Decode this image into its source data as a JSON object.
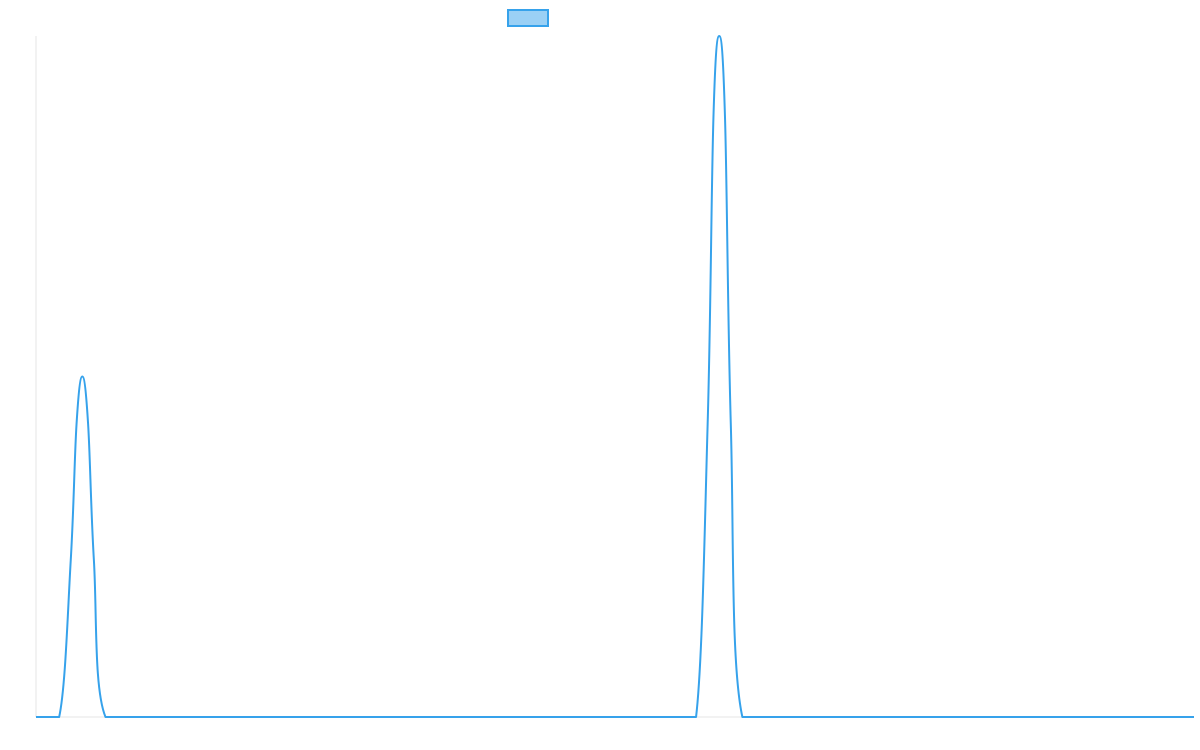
{
  "chart_data": {
    "type": "line",
    "title": "",
    "xlabel": "",
    "ylabel": "",
    "xlim": [
      0,
      100
    ],
    "ylim": [
      0,
      100
    ],
    "grid": false,
    "legend": "top-center",
    "series": [
      {
        "color": "#36a2eb",
        "fill": "#9ad0f5",
        "x": [
          0,
          2,
          3,
          3.5,
          4,
          4.5,
          5,
          6,
          40,
          55,
          57,
          58,
          58.5,
          59,
          59.5,
          60,
          61,
          95,
          100
        ],
        "y": [
          0,
          0,
          23,
          43,
          50,
          43,
          23,
          0,
          0,
          0,
          0,
          43,
          88,
          100,
          88,
          43,
          0,
          0,
          0
        ]
      }
    ]
  }
}
